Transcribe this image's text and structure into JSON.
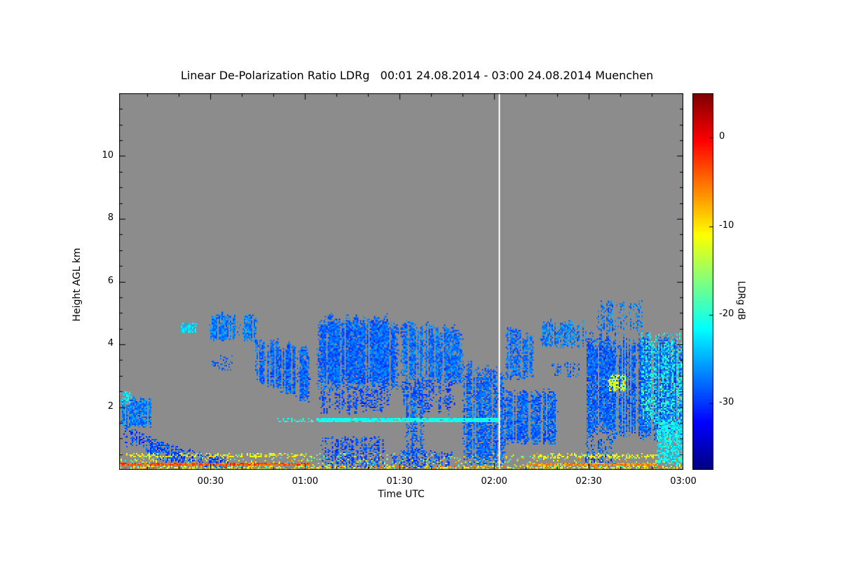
{
  "chart_data": {
    "type": "heatmap",
    "title": "Linear De-Polarization Ratio LDRg   00:01 24.08.2014 - 03:00 24.08.2014 Muenchen",
    "xlabel": "Time UTC",
    "ylabel": "Height AGL km",
    "units": {
      "x": "hours UTC",
      "y": "km",
      "value": "dB"
    },
    "x_start": 0.0167,
    "x_end": 3.0,
    "x_ticks": [
      {
        "t": 0.5,
        "label": "00:30"
      },
      {
        "t": 1.0,
        "label": "01:00"
      },
      {
        "t": 1.5,
        "label": "01:30"
      },
      {
        "t": 2.0,
        "label": "02:00"
      },
      {
        "t": 2.5,
        "label": "02:30"
      },
      {
        "t": 3.0,
        "label": "03:00"
      }
    ],
    "x_minor_step": 0.166667,
    "y_min": 0,
    "y_max": 12,
    "y_ticks": [
      {
        "v": 2,
        "label": "2"
      },
      {
        "v": 4,
        "label": "4"
      },
      {
        "v": 6,
        "label": "6"
      },
      {
        "v": 8,
        "label": "8"
      },
      {
        "v": 10,
        "label": "10"
      }
    ],
    "y_minor_step": 0.5,
    "plot_background": "#8c8c8c",
    "colorbar": {
      "label": "LDRg dB",
      "colormap": "jet",
      "max": 5,
      "min": -37.5,
      "ticks": [
        {
          "v": 0,
          "label": "0"
        },
        {
          "v": -10,
          "label": "-10"
        },
        {
          "v": -20,
          "label": "-20"
        },
        {
          "v": -30,
          "label": "-30"
        }
      ]
    },
    "divider": {
      "time": 2.025,
      "color": "#ffffff"
    },
    "features": [
      {
        "name": "surface-clutter-speckle",
        "t0": 0.0167,
        "t1": 3.0,
        "h0": 0.0,
        "h1": 0.55,
        "v": -14,
        "j": 9,
        "d": 0.18,
        "ne": 1
      },
      {
        "name": "surface-clutter-low",
        "t0": 0.0167,
        "t1": 3.0,
        "h0": 0.0,
        "h1": 0.12,
        "v": -10,
        "j": 7,
        "d": 0.5,
        "ne": 1
      },
      {
        "name": "echo-patch-0001",
        "t0": 0.0167,
        "t1": 0.19,
        "h0": 1.35,
        "h1": 2.35,
        "v": -27,
        "j": 2.5,
        "d": 0.9,
        "cs": 0.5,
        "tj": 0.15,
        "ne": 1
      },
      {
        "name": "echo-specks-0001",
        "t0": 0.0167,
        "t1": 0.08,
        "h0": 2.1,
        "h1": 2.5,
        "v": -22,
        "j": 3,
        "d": 0.5,
        "ne": 1
      },
      {
        "name": "fall-streaks-0003",
        "t0": 0.04,
        "t1": 0.38,
        "h0": 0.75,
        "h0b": 0.05,
        "h1": 1.45,
        "h1b": 0.55,
        "v": -29,
        "j": 2.5,
        "d": 0.55,
        "cs": 0.7,
        "bj": 0.2
      },
      {
        "name": "fall-streaks-0015",
        "t0": 0.2,
        "t1": 0.6,
        "h0": 0.25,
        "h0b": 0.02,
        "h1": 0.95,
        "h1b": 0.35,
        "v": -29,
        "j": 2.5,
        "d": 0.5,
        "cs": 0.7
      },
      {
        "name": "cloud-speck-0022",
        "t0": 0.34,
        "t1": 0.43,
        "h0": 4.35,
        "h1": 4.7,
        "v": -23,
        "j": 2,
        "d": 0.75
      },
      {
        "name": "cloud-0030",
        "t0": 0.49,
        "t1": 0.75,
        "h0": 4.1,
        "h1": 5.05,
        "v": -27,
        "j": 2.5,
        "d": 0.88,
        "cs": 0.6,
        "tj": 0.25
      },
      {
        "name": "specks-0032",
        "t0": 0.5,
        "t1": 0.62,
        "h0": 3.15,
        "h1": 3.65,
        "v": -28,
        "j": 2,
        "d": 0.3
      },
      {
        "name": "cloud-0045",
        "t0": 0.73,
        "t1": 1.03,
        "h0": 2.85,
        "h0b": 2.05,
        "h1": 4.35,
        "h1b": 4.0,
        "v": -28,
        "j": 2.5,
        "d": 0.9,
        "cs": 0.5,
        "tj": 0.3
      },
      {
        "name": "dotted-line-0051",
        "t0": 0.84,
        "t1": 1.08,
        "h0": 1.5,
        "h1": 1.63,
        "v": -20,
        "j": 2,
        "d": 0.4
      },
      {
        "name": "cloud-0105",
        "t0": 1.06,
        "t1": 1.5,
        "h0": 2.55,
        "h1": 5.05,
        "v": -28,
        "j": 2.5,
        "d": 0.92,
        "cs": 0.55,
        "tj": 0.35
      },
      {
        "name": "fall-streaks-0105",
        "t0": 1.07,
        "t1": 1.46,
        "h0": 1.65,
        "h1": 2.6,
        "v": -29,
        "j": 2,
        "d": 0.55,
        "cs": 0.8,
        "bj": 0.4
      },
      {
        "name": "rain-0105",
        "t0": 1.08,
        "t1": 1.43,
        "h0": 0.05,
        "h1": 1.05,
        "v": -29,
        "j": 2.5,
        "d": 0.5,
        "cs": 0.8
      },
      {
        "name": "cloud-0130",
        "t0": 1.5,
        "t1": 1.84,
        "h0": 2.9,
        "h0b": 2.7,
        "h1": 4.9,
        "h1b": 4.6,
        "v": -27.5,
        "j": 2.5,
        "d": 0.85,
        "cs": 0.6,
        "tj": 0.3
      },
      {
        "name": "fall-streaks-0130",
        "t0": 1.5,
        "t1": 1.8,
        "h0": 1.7,
        "h1": 2.9,
        "v": -29,
        "j": 2,
        "d": 0.45,
        "cs": 0.8,
        "bj": 0.4
      },
      {
        "name": "column-0133",
        "t0": 1.53,
        "t1": 1.63,
        "h0": 0.25,
        "h1": 2.9,
        "v": -28,
        "j": 2.5,
        "d": 0.6,
        "cs": 0.6
      },
      {
        "name": "drizzle-0130",
        "t0": 1.45,
        "t1": 1.78,
        "h0": 0.05,
        "h1": 0.65,
        "v": -29,
        "j": 2.5,
        "d": 0.45,
        "cs": 0.7
      },
      {
        "name": "column-0150",
        "t0": 1.83,
        "t1": 2.06,
        "h0": 0.15,
        "h1": 3.65,
        "h1b": 3.3,
        "v": -28,
        "j": 2.5,
        "d": 0.8,
        "cs": 0.65,
        "tj": 0.3
      },
      {
        "name": "echo-0205",
        "t0": 2.05,
        "t1": 2.34,
        "h0": 0.8,
        "h1": 2.65,
        "v": -28,
        "j": 2.5,
        "d": 0.85,
        "cs": 0.5,
        "tj": 0.2
      },
      {
        "name": "cloud-0205",
        "t0": 2.06,
        "t1": 2.21,
        "h0": 2.85,
        "h1": 4.6,
        "v": -27.5,
        "j": 2.5,
        "d": 0.7,
        "cs": 0.7,
        "tj": 0.3
      },
      {
        "name": "cloud-0215",
        "t0": 2.24,
        "t1": 2.49,
        "h0": 3.9,
        "h1": 4.85,
        "v": -27,
        "j": 2.5,
        "d": 0.7,
        "cs": 0.6,
        "tj": 0.25
      },
      {
        "name": "specks-0220",
        "t0": 2.3,
        "t1": 2.46,
        "h0": 2.9,
        "h1": 3.45,
        "v": -28,
        "j": 2,
        "d": 0.25
      },
      {
        "name": "cloud-0230",
        "t0": 2.49,
        "t1": 3.0,
        "h0": 0.9,
        "h1": 4.6,
        "h1b": 4.4,
        "v": -28,
        "j": 2.5,
        "d": 0.9,
        "cs": 0.5,
        "tj": 0.45,
        "bj": 0.3,
        "ne": 1
      },
      {
        "name": "towers-0235",
        "t0": 2.54,
        "t1": 2.79,
        "h0": 4.4,
        "h1": 5.4,
        "v": -27,
        "j": 2.5,
        "d": 0.55,
        "cs": 0.9
      },
      {
        "name": "rain-0230",
        "t0": 2.48,
        "t1": 2.63,
        "h0": 0.15,
        "h1": 1.0,
        "v": -28.5,
        "j": 2.5,
        "d": 0.5,
        "cs": 0.7
      },
      {
        "name": "cyan-region-0250",
        "t0": 2.78,
        "t1": 3.0,
        "h0": 1.4,
        "h1": 4.35,
        "v": -21,
        "j": 3.5,
        "d": 0.45,
        "cs": 0.4,
        "ne": 1
      },
      {
        "name": "cyan-low-0255",
        "t0": 2.86,
        "t1": 3.0,
        "h0": 0.15,
        "h1": 1.6,
        "v": -22,
        "j": 3,
        "d": 0.75,
        "ne": 1
      },
      {
        "name": "yellow-blob-0240",
        "t0": 2.6,
        "t1": 2.7,
        "h0": 2.5,
        "h1": 3.05,
        "v": -13,
        "j": 4,
        "d": 0.65
      },
      {
        "name": "clutter-line-upper-early",
        "t0": 0.05,
        "t1": 1.0,
        "h0": 0.38,
        "h1": 0.52,
        "v": -11,
        "j": 3,
        "d": 0.35,
        "ne": 1
      },
      {
        "name": "clutter-line-upper-late",
        "t0": 2.2,
        "t1": 2.86,
        "h0": 0.36,
        "h1": 0.5,
        "v": -11,
        "j": 3,
        "d": 0.4,
        "ne": 1
      },
      {
        "name": "clutter-line-early",
        "t0": 0.0167,
        "t1": 1.02,
        "h0": 0.13,
        "h1": 0.24,
        "v": -4,
        "j": 3,
        "d": 0.92,
        "ne": 1
      },
      {
        "name": "clutter-line-late",
        "t0": 2.17,
        "t1": 2.87,
        "h0": 0.13,
        "h1": 0.24,
        "v": -6,
        "j": 3,
        "d": 0.85,
        "ne": 1
      },
      {
        "name": "bright-band",
        "t0": 1.07,
        "t1": 2.02,
        "h0": 1.5,
        "h1": 1.66,
        "v": -21,
        "j": 1.5,
        "d": 0.95,
        "ne": 1
      }
    ]
  }
}
